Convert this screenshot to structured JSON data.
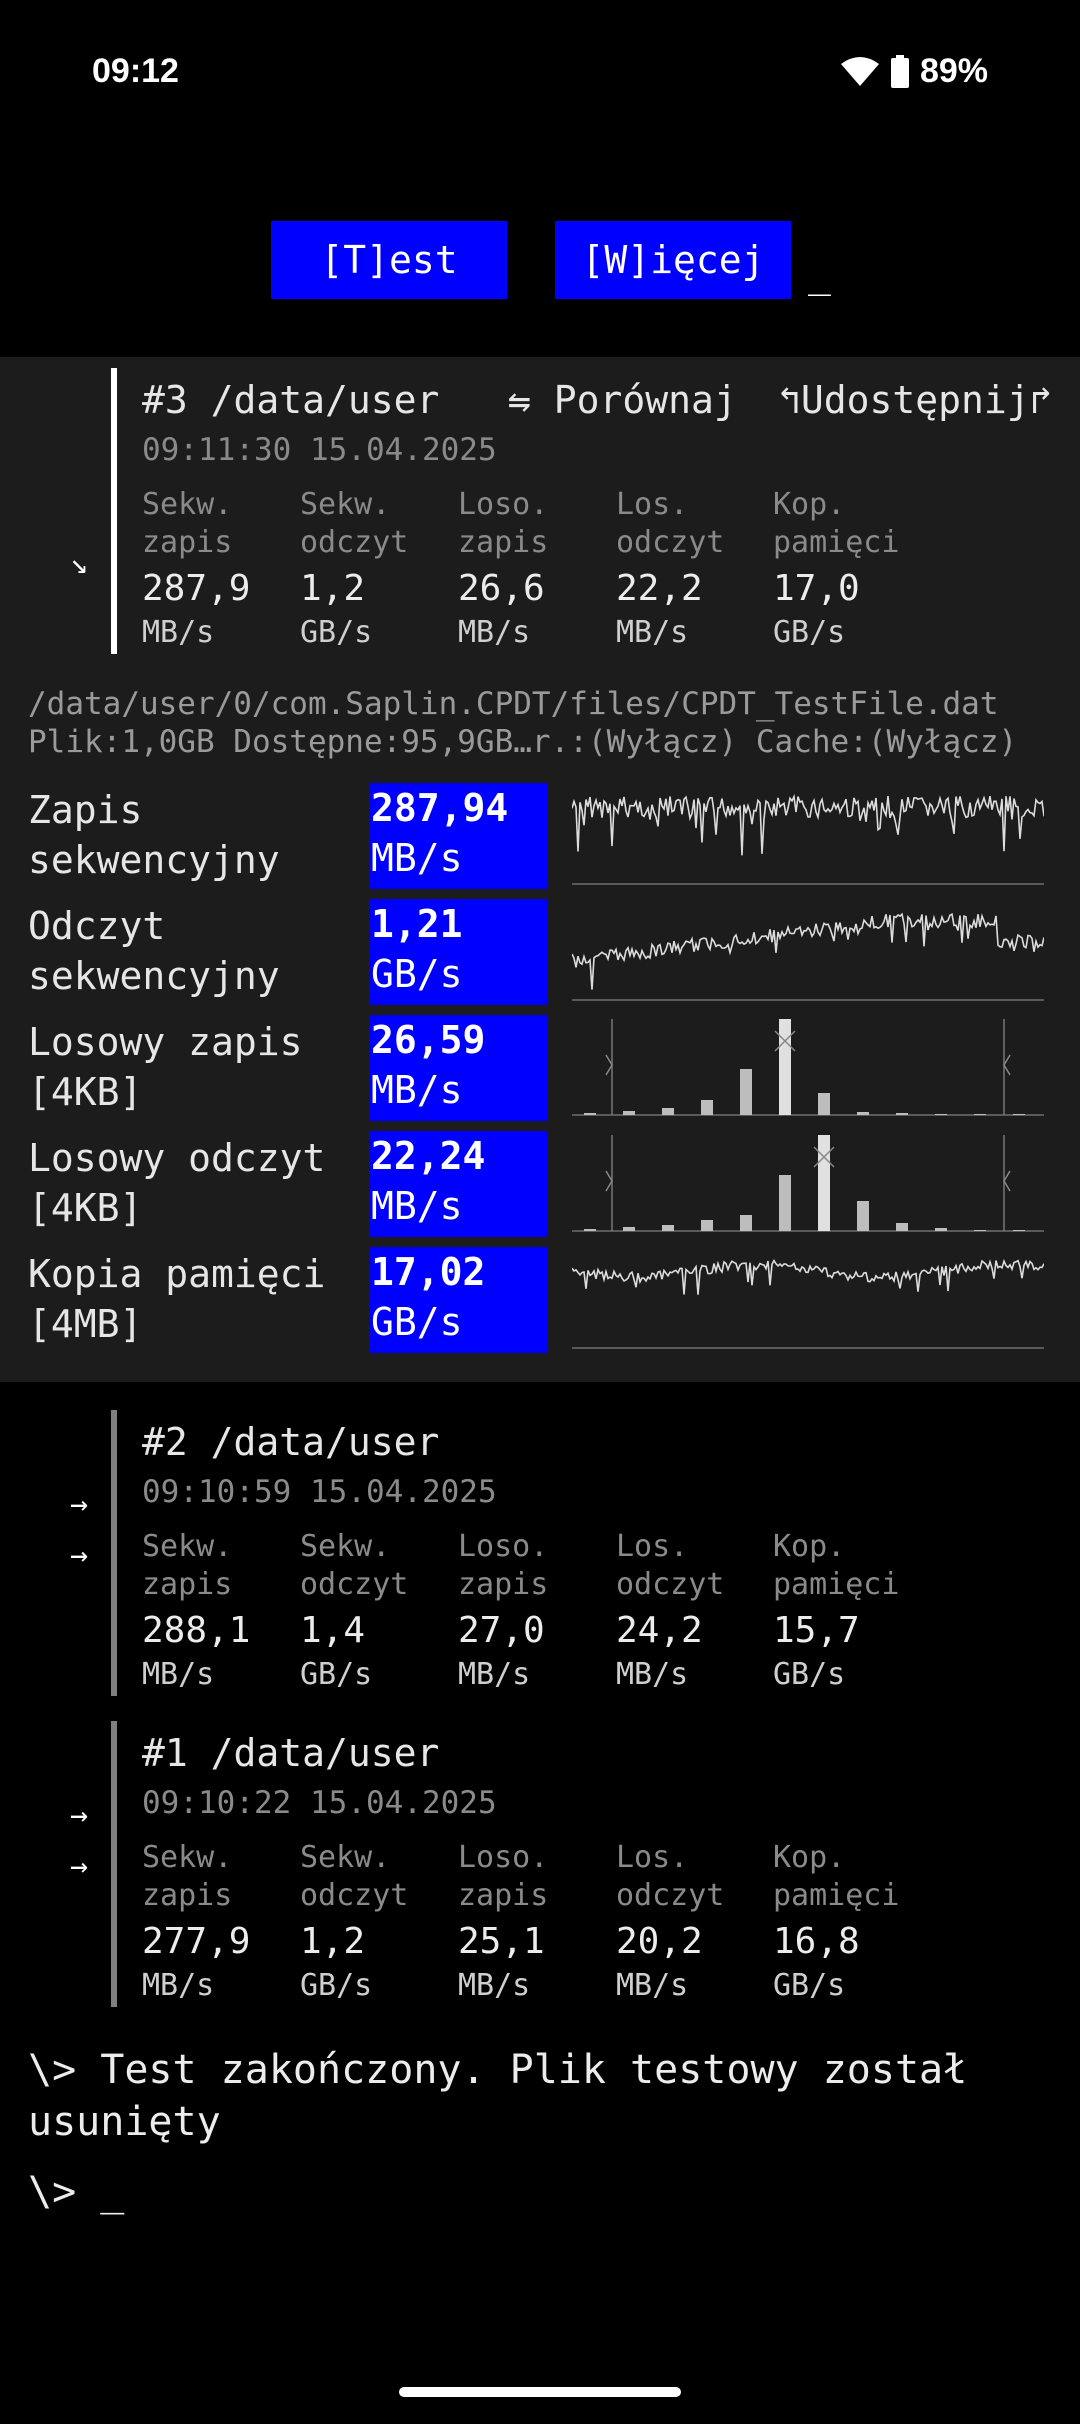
{
  "status_bar": {
    "time": "09:12",
    "battery": "89%",
    "icons": [
      "wifi-icon",
      "battery-icon"
    ]
  },
  "toolbar": {
    "test_label": "[T]est",
    "more_label": "[W]ięcej",
    "cursor": "_"
  },
  "current": {
    "title": "#3 /data/user",
    "time": "09:11:30 15.04.2025",
    "compare_label": "⇋ Porównaj",
    "share_label": "↰Udostępnij↱",
    "arrow": "↘",
    "metrics": [
      {
        "label": "Sekw.\nzapis",
        "value": "287,9",
        "unit": "MB/s"
      },
      {
        "label": "Sekw.\nodczyt",
        "value": "1,2",
        "unit": "GB/s"
      },
      {
        "label": "Loso.\nzapis",
        "value": "26,6",
        "unit": "MB/s"
      },
      {
        "label": "Los.\nodczyt",
        "value": "22,2",
        "unit": "MB/s"
      },
      {
        "label": "Kop.\npamięci",
        "value": "17,0",
        "unit": "GB/s"
      }
    ],
    "file_path": "/data/user/0/com.Saplin.CPDT/files/CPDT_TestFile.dat",
    "file_info": "Plik:1,0GB Dostępne:95,9GB…r.:(Wyłącz) Cache:(Wyłącz)",
    "results": [
      {
        "label": "Zapis\nsekwencyjny",
        "value": "287,94",
        "unit": "MB/s",
        "graph": "line"
      },
      {
        "label": "Odczyt\nsekwencyjny",
        "value": "1,21",
        "unit": "GB/s",
        "graph": "line"
      },
      {
        "label": "Losowy zapis\n[4KB]",
        "value": "26,59",
        "unit": "MB/s",
        "graph": "histogram"
      },
      {
        "label": "Losowy odczyt\n[4KB]",
        "value": "22,24",
        "unit": "MB/s",
        "graph": "histogram"
      },
      {
        "label": "Kopia pamięci\n[4MB]",
        "value": "17,02",
        "unit": "GB/s",
        "graph": "line"
      }
    ]
  },
  "history": [
    {
      "title": "#2 /data/user",
      "time": "09:10:59 15.04.2025",
      "arrows": [
        "→",
        "→"
      ],
      "metrics": [
        {
          "label": "Sekw.\nzapis",
          "value": "288,1",
          "unit": "MB/s"
        },
        {
          "label": "Sekw.\nodczyt",
          "value": "1,4",
          "unit": "GB/s"
        },
        {
          "label": "Loso.\nzapis",
          "value": "27,0",
          "unit": "MB/s"
        },
        {
          "label": "Los.\nodczyt",
          "value": "24,2",
          "unit": "MB/s"
        },
        {
          "label": "Kop.\npamięci",
          "value": "15,7",
          "unit": "GB/s"
        }
      ]
    },
    {
      "title": "#1 /data/user",
      "time": "09:10:22 15.04.2025",
      "arrows": [
        "→",
        "→"
      ],
      "metrics": [
        {
          "label": "Sekw.\nzapis",
          "value": "277,9",
          "unit": "MB/s"
        },
        {
          "label": "Sekw.\nodczyt",
          "value": "1,2",
          "unit": "GB/s"
        },
        {
          "label": "Loso.\nzapis",
          "value": "25,1",
          "unit": "MB/s"
        },
        {
          "label": "Los.\nodczyt",
          "value": "20,2",
          "unit": "MB/s"
        },
        {
          "label": "Kop.\npamięci",
          "value": "16,8",
          "unit": "GB/s"
        }
      ]
    }
  ],
  "log": {
    "message": "\\> Test zakończony. Plik testowy został usunięty",
    "prompt": "\\> _"
  },
  "colors": {
    "accent": "#0000ff",
    "panel": "#1c1c1c",
    "background": "#000000"
  }
}
